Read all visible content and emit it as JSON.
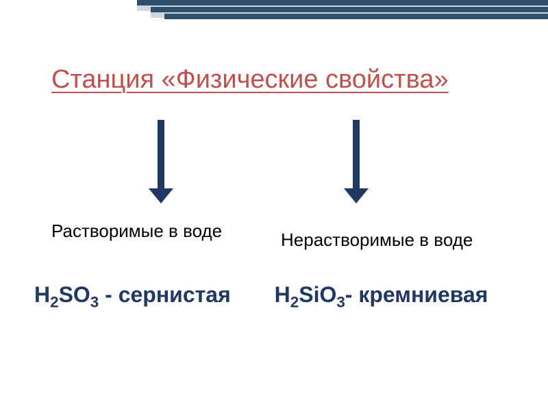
{
  "decor": {
    "stripe_color": "#2f4f6f",
    "stripe_light": "#cfd8df"
  },
  "title": {
    "text": "Станция  «Физические свойства»",
    "color": "#c0504d",
    "fontsize": 38
  },
  "arrows": {
    "color": "#1f3864"
  },
  "labels": {
    "left": "Растворимые в воде",
    "right": "Нерастворимые в воде",
    "color": "#000000",
    "fontsize": 26
  },
  "formulas": {
    "color": "#1f3864",
    "fontsize": 32,
    "left": {
      "parts": [
        "H",
        "2",
        "SO",
        "3",
        " - сернистая"
      ]
    },
    "right": {
      "parts": [
        "H",
        "2",
        "SiO",
        "3",
        "- кремниевая"
      ]
    }
  }
}
